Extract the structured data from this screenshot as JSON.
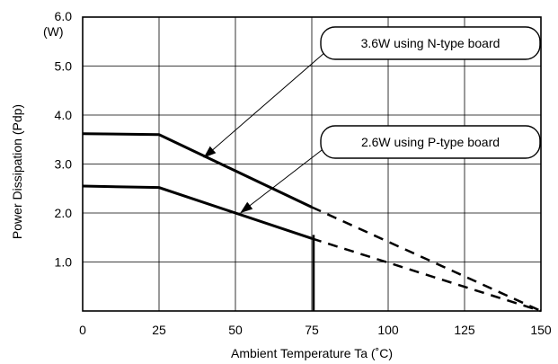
{
  "chart_data": {
    "type": "line",
    "xlabel": "Ambient Temperature   Ta  (˚C)",
    "ylabel": "Power Dissipation  (Pdp)",
    "y_unit": "(W)",
    "xlim": [
      0,
      150
    ],
    "ylim": [
      0,
      6.0
    ],
    "x_ticks": [
      "0",
      "25",
      "50",
      "75",
      "100",
      "125",
      "150"
    ],
    "x_tick_values": [
      0,
      25,
      50,
      75,
      100,
      125,
      150
    ],
    "y_ticks": [
      "1.0",
      "2.0",
      "3.0",
      "4.0",
      "5.0",
      "6.0"
    ],
    "y_tick_values": [
      1,
      2,
      3,
      4,
      5,
      6
    ],
    "grid": true,
    "series": [
      {
        "points": [
          [
            0,
            3.62
          ],
          [
            25,
            3.6
          ],
          [
            75,
            2.12
          ]
        ],
        "extrapolated": [
          [
            75,
            2.12
          ],
          [
            150,
            0
          ]
        ]
      },
      {
        "points": [
          [
            0,
            2.55
          ],
          [
            25,
            2.52
          ],
          [
            75,
            1.48
          ]
        ],
        "extrapolated": [
          [
            75,
            1.48
          ],
          [
            150,
            0
          ]
        ]
      }
    ],
    "cutoff_x": 75,
    "annotations": [
      {
        "text": "3.6W  using N-type board",
        "target": [
          40,
          3.15
        ]
      },
      {
        "text": "2.6W  using P-type board",
        "target": [
          52,
          2.02
        ]
      }
    ]
  }
}
